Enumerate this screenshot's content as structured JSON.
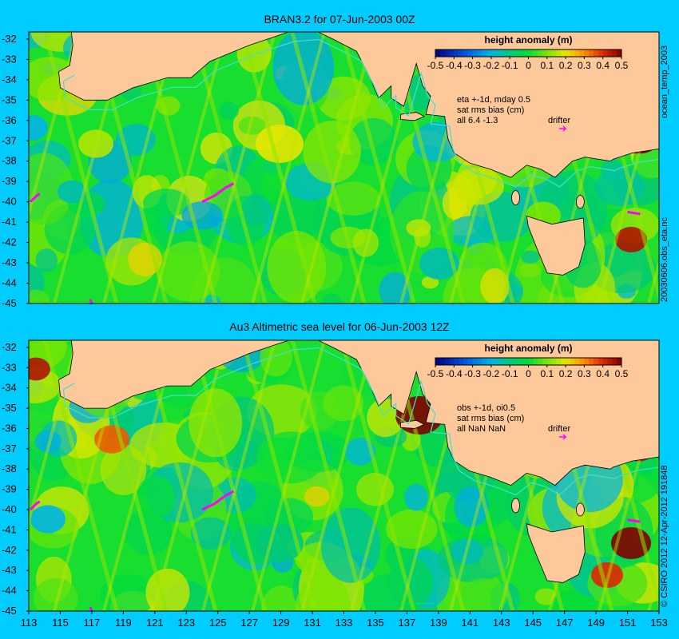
{
  "colors": {
    "background": "#00ccff",
    "land": "#fdc89a",
    "coast_contour": "#40e0d0",
    "drifter": "#ff00ff",
    "scale_low": "#000080",
    "scale_mid": "#00ff00",
    "scale_high": "#800000"
  },
  "axes": {
    "lat_ticks": [
      "-32",
      "-33",
      "-34",
      "-35",
      "-36",
      "-37",
      "-38",
      "-39",
      "-40",
      "-41",
      "-42",
      "-43",
      "-44",
      "-45"
    ],
    "lon_ticks": [
      "113",
      "115",
      "117",
      "119",
      "121",
      "123",
      "125",
      "127",
      "129",
      "131",
      "133",
      "135",
      "137",
      "139",
      "141",
      "143",
      "145",
      "147",
      "149",
      "151",
      "153"
    ]
  },
  "colorbar": {
    "label": "height anomaly (m)",
    "ticks": [
      "-0.5",
      "-0.4",
      "-0.3",
      "-0.2",
      "-0.1",
      "0",
      "0.1",
      "0.2",
      "0.3",
      "0.4",
      "0.5"
    ],
    "range": [
      -0.5,
      0.5
    ]
  },
  "panels": [
    {
      "title": "BRAN3.2 for 07-Jun-2003 00Z",
      "info": [
        "eta +-1d, mday 0.5",
        "sat rms bias (cm)",
        "all 6.4 -1.3"
      ],
      "drifter_label": "drifter",
      "side_right": "ocean_temp_2003",
      "side_bottom": "20030606.obs_eta.nc"
    },
    {
      "title": "Au3 Altimetric sea level  for 06-Jun-2003 12Z",
      "info": [
        "obs +-1d, oi0.5",
        "sat rms bias (cm)",
        "all NaN NaN"
      ],
      "drifter_label": "drifter",
      "side_right": "© CSIRO  2012   12-Apr-2012 191848"
    }
  ]
}
